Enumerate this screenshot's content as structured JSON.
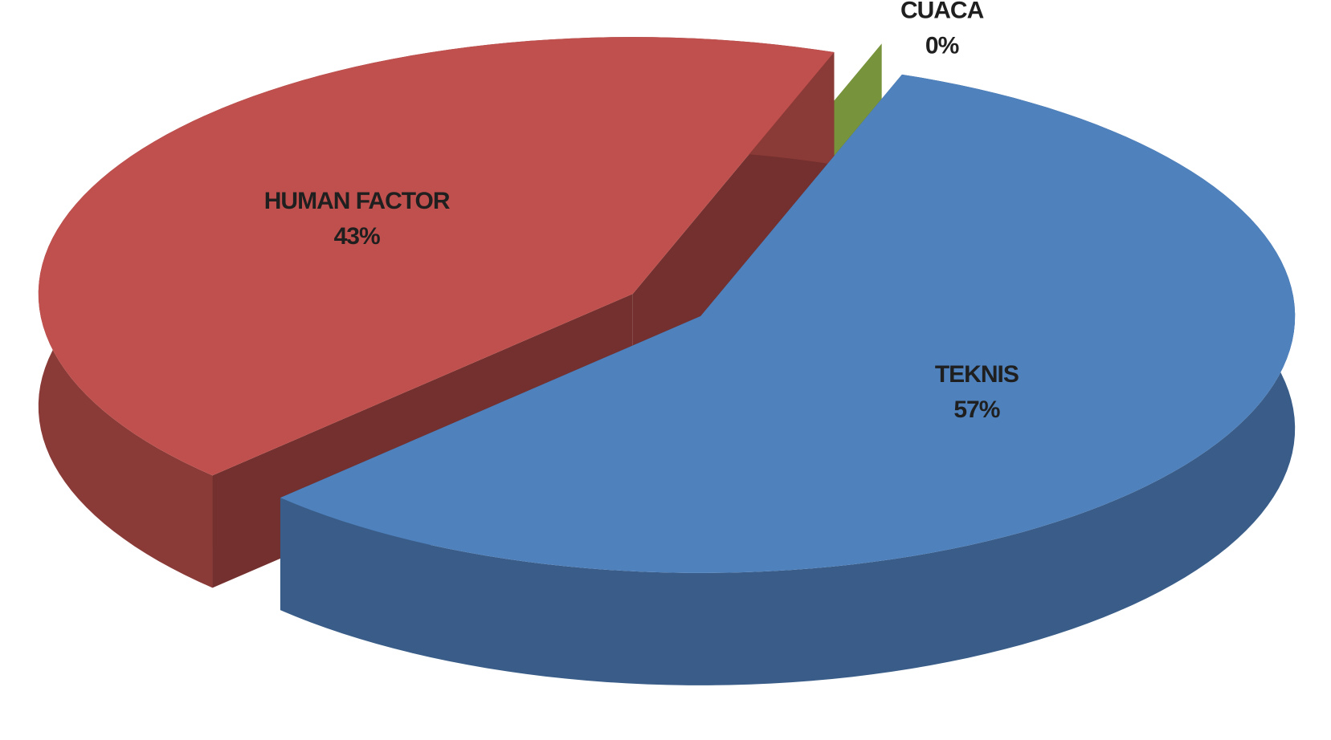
{
  "chart_data": {
    "type": "pie",
    "categories": [
      "HUMAN FACTOR",
      "CUACA",
      "TEKNIS"
    ],
    "values": [
      43,
      0,
      57
    ],
    "value_labels": [
      "43%",
      "0%",
      "57%"
    ],
    "colors": [
      "#c0504d",
      "#77933c",
      "#4f81bd"
    ]
  }
}
